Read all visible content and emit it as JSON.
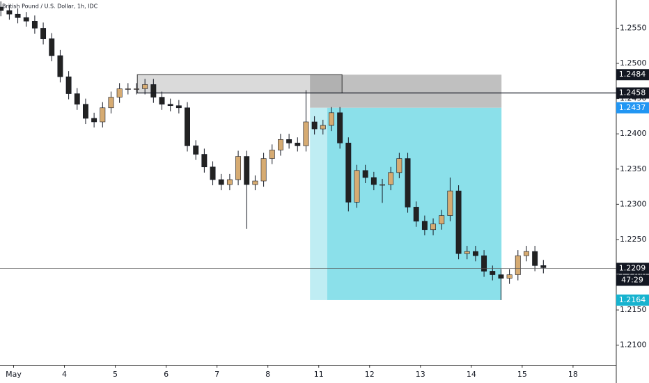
{
  "chart_data": {
    "type": "candlestick",
    "title": "British Pound / U.S. Dollar, 1h, IDC",
    "x": [
      0,
      1,
      2,
      3,
      4,
      5,
      6,
      7,
      8,
      9,
      10,
      11,
      12,
      13,
      14,
      15,
      16,
      17,
      18,
      19,
      20,
      21,
      22,
      23,
      24,
      25,
      26,
      27,
      28,
      29,
      30,
      31,
      32,
      33,
      34,
      35,
      36,
      37,
      38,
      39,
      40,
      41,
      42,
      43,
      44,
      45,
      46,
      47,
      48,
      49,
      50,
      51,
      52,
      53,
      54,
      55,
      56,
      57,
      58,
      59,
      60,
      61,
      62,
      63,
      64
    ],
    "open": [
      1.258,
      1.2575,
      1.257,
      1.2565,
      1.256,
      1.255,
      1.2535,
      1.2511,
      1.2481,
      1.2457,
      1.2442,
      1.2422,
      1.2417,
      1.2437,
      1.2452,
      1.2464,
      1.2464,
      1.2464,
      1.247,
      1.2452,
      1.2442,
      1.244,
      1.2437,
      1.2383,
      1.2371,
      1.2353,
      1.2335,
      1.2328,
      1.2335,
      1.2368,
      1.2328,
      1.2333,
      1.2365,
      1.2377,
      1.2392,
      1.2387,
      1.2383,
      1.2417,
      1.2407,
      1.2412,
      1.243,
      1.2387,
      1.2303,
      1.2348,
      1.2338,
      1.2328,
      1.2328,
      1.2345,
      1.2365,
      1.2296,
      1.2276,
      1.2264,
      1.2272,
      1.2284,
      1.2319,
      1.223,
      1.2233,
      1.2227,
      1.2205,
      1.22,
      1.2195,
      1.22,
      1.2227,
      1.2233,
      1.2213
    ],
    "high": [
      1.2588,
      1.2583,
      1.2578,
      1.2573,
      1.2568,
      1.2558,
      1.2543,
      1.2519,
      1.2489,
      1.2465,
      1.245,
      1.243,
      1.2445,
      1.246,
      1.2472,
      1.2472,
      1.2472,
      1.2478,
      1.2478,
      1.246,
      1.245,
      1.2448,
      1.2445,
      1.2391,
      1.2379,
      1.2361,
      1.2343,
      1.2343,
      1.2376,
      1.2376,
      1.2341,
      1.2373,
      1.2385,
      1.24,
      1.24,
      1.2395,
      1.2462,
      1.2425,
      1.242,
      1.2438,
      1.2438,
      1.2395,
      1.2356,
      1.2356,
      1.2346,
      1.2336,
      1.2353,
      1.2373,
      1.2373,
      1.2304,
      1.2284,
      1.228,
      1.2292,
      1.2338,
      1.2327,
      1.2241,
      1.2241,
      1.2235,
      1.2213,
      1.2208,
      1.2208,
      1.2235,
      1.2241,
      1.2241,
      1.2221
    ],
    "low": [
      1.2567,
      1.2562,
      1.2557,
      1.2552,
      1.2542,
      1.2527,
      1.2503,
      1.2473,
      1.2449,
      1.2434,
      1.2414,
      1.2409,
      1.2409,
      1.2429,
      1.2444,
      1.2456,
      1.2456,
      1.2456,
      1.2444,
      1.2434,
      1.2432,
      1.2429,
      1.2375,
      1.2363,
      1.2345,
      1.2327,
      1.232,
      1.232,
      1.2327,
      1.2265,
      1.232,
      1.2325,
      1.2357,
      1.2369,
      1.2379,
      1.2375,
      1.2375,
      1.2399,
      1.2399,
      1.2404,
      1.2379,
      1.229,
      1.2295,
      1.233,
      1.232,
      1.2302,
      1.232,
      1.2337,
      1.2288,
      1.2268,
      1.2256,
      1.2256,
      1.2264,
      1.2276,
      1.2222,
      1.2222,
      1.2219,
      1.2197,
      1.2192,
      1.2164,
      1.2187,
      1.2192,
      1.2219,
      1.2205,
      1.2202
    ],
    "close": [
      1.2575,
      1.257,
      1.2565,
      1.256,
      1.255,
      1.2535,
      1.2511,
      1.2481,
      1.2457,
      1.2442,
      1.2422,
      1.2417,
      1.2437,
      1.2452,
      1.2464,
      1.2464,
      1.2464,
      1.247,
      1.2452,
      1.2442,
      1.244,
      1.2437,
      1.2383,
      1.2371,
      1.2353,
      1.2335,
      1.2328,
      1.2335,
      1.2368,
      1.2328,
      1.2333,
      1.2365,
      1.2377,
      1.2392,
      1.2387,
      1.2383,
      1.2417,
      1.2407,
      1.2412,
      1.243,
      1.2387,
      1.2303,
      1.2348,
      1.2338,
      1.2328,
      1.2328,
      1.2345,
      1.2365,
      1.2296,
      1.2276,
      1.2264,
      1.2272,
      1.2284,
      1.2319,
      1.223,
      1.2233,
      1.2227,
      1.2205,
      1.22,
      1.2195,
      1.22,
      1.2227,
      1.2233,
      1.2213,
      1.221
    ],
    "up_color": "#d6ab72",
    "down_color": "#222222",
    "xlim": [
      -0.1,
      72.6
    ],
    "ylim": [
      1.2072,
      1.259
    ],
    "xticks": [
      {
        "value": 1.5,
        "label": "May"
      },
      {
        "value": 7.5,
        "label": "4"
      },
      {
        "value": 13.5,
        "label": "5"
      },
      {
        "value": 19.5,
        "label": "6"
      },
      {
        "value": 25.5,
        "label": "7"
      },
      {
        "value": 31.5,
        "label": "8"
      },
      {
        "value": 37.5,
        "label": "11"
      },
      {
        "value": 43.5,
        "label": "12"
      },
      {
        "value": 49.5,
        "label": "13"
      },
      {
        "value": 55.5,
        "label": "14"
      },
      {
        "value": 61.5,
        "label": "15"
      },
      {
        "value": 67.5,
        "label": "18"
      }
    ],
    "yticks": [
      {
        "value": 1.21,
        "label": "1.2100"
      },
      {
        "value": 1.215,
        "label": "1.2150"
      },
      {
        "value": 1.22,
        "label": "1.2200"
      },
      {
        "value": 1.225,
        "label": "1.2250"
      },
      {
        "value": 1.23,
        "label": "1.2300"
      },
      {
        "value": 1.235,
        "label": "1.2350"
      },
      {
        "value": 1.24,
        "label": "1.2400"
      },
      {
        "value": 1.245,
        "label": "1.2450"
      },
      {
        "value": 1.25,
        "label": "1.2500"
      },
      {
        "value": 1.255,
        "label": "1.2550"
      }
    ],
    "zone": {
      "x0": 16.1,
      "x1": 40.25,
      "top": 1.2484,
      "bottom": 1.2458,
      "color": "rgba(150,150,150,0.35)"
    },
    "position": {
      "x0": 36.47,
      "x1": 59.06,
      "entry_x": 38.5,
      "entry": 1.2437,
      "stop": 1.2484,
      "target": 1.2164,
      "stop_color": "rgba(150,150,150,0.6)",
      "target_color": "#8be0ea",
      "target_pre_color": "#bfedf3"
    },
    "hlines": [
      {
        "value": 1.2458,
        "x0": 16.1
      },
      {
        "value": 1.2209,
        "x0": -0.1
      }
    ],
    "price_labels": [
      {
        "value": 1.2484,
        "bg": "#131722"
      },
      {
        "value": 1.2458,
        "bg": "#131722"
      },
      {
        "value": 1.2437,
        "bg": "#2196f3"
      },
      {
        "value": 1.2209,
        "bg": "#131722"
      },
      {
        "value": 1.2164,
        "bg": "#17b3cf"
      }
    ],
    "countdown": "47:29"
  }
}
